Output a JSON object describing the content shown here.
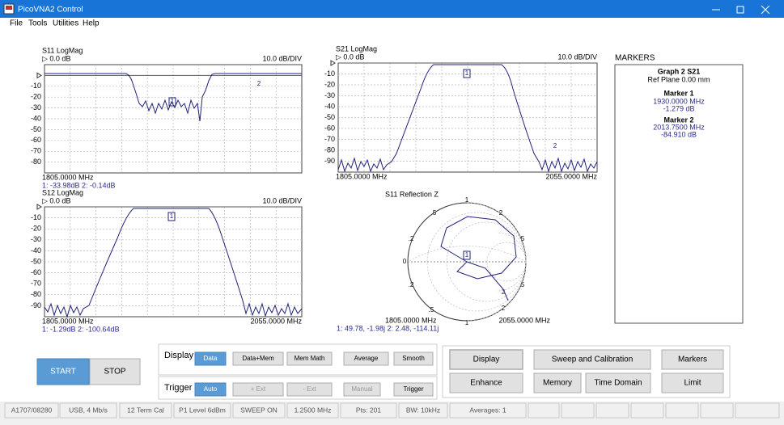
{
  "window": {
    "title": "PicoVNA2 Control"
  },
  "menu": [
    "File",
    "Tools",
    "Utilities",
    "Help"
  ],
  "plots": [
    {
      "title": "S11 LogMag",
      "ref": "▷ 0.0 dB",
      "scale": "10.0 dB/DIV",
      "yticks": [
        "-10",
        "-20",
        "-30",
        "-40",
        "-50",
        "-60",
        "-70",
        "-80"
      ],
      "start": "1805.0000 MHz",
      "readout": "1: -33.98dB   2: -0.14dB",
      "markers": [
        "1",
        "2"
      ]
    },
    {
      "title": "S21 LogMag",
      "ref": "▷ 0.0 dB",
      "scale": "10.0 dB/DIV",
      "yticks": [
        "-10",
        "-20",
        "-30",
        "-40",
        "-50",
        "-60",
        "-70",
        "-80",
        "-90"
      ],
      "start": "1805.0000 MHz",
      "stop": "2055.0000 MHz",
      "markers": [
        "1",
        "2"
      ]
    },
    {
      "title": "S12 LogMag",
      "ref": "▷ 0.0 dB",
      "scale": "10.0 dB/DIV",
      "yticks": [
        "-10",
        "-20",
        "-30",
        "-40",
        "-50",
        "-60",
        "-70",
        "-80",
        "-90"
      ],
      "start": "1805.0000 MHz",
      "stop": "2055.0000 MHz",
      "readout": "1: -1.29dB   2: -100.64dB",
      "markers": [
        "1"
      ]
    }
  ],
  "smith": {
    "title": "S11 Reflection Z",
    "labels": [
      "1",
      ".5",
      "2",
      ".2",
      "5",
      "0",
      ".2",
      "5",
      ".5",
      "2",
      "1"
    ],
    "start": "1805.0000 MHz",
    "stop": "2055.0000 MHz",
    "readout": "1: 49.78, -1.98j      2: 2.48, -114.11j",
    "markers": [
      "1",
      "2"
    ]
  },
  "markers_panel": {
    "heading": "MARKERS",
    "graph": "Graph 2 S21",
    "ref_plane": "Ref Plane 0.00 mm",
    "entries": [
      {
        "name": "Marker  1",
        "freq": "1930.0000 MHz",
        "value": "-1.279 dB"
      },
      {
        "name": "Marker  2",
        "freq": "2013.7500 MHz",
        "value": "-84.910 dB"
      }
    ]
  },
  "run": {
    "start": "START",
    "stop": "STOP"
  },
  "display": {
    "label": "Display",
    "buttons": [
      "Data",
      "Data+Mem",
      "Mem Math",
      "Average",
      "Smooth"
    ]
  },
  "trigger": {
    "label": "Trigger",
    "buttons": [
      "Auto",
      "+ Ext",
      "- Ext",
      "Manual",
      "Trigger"
    ]
  },
  "panel": {
    "buttons": [
      "Display",
      "Sweep and Calibration",
      "Markers",
      "Enhance",
      "Memory",
      "Time Domain",
      "Limit"
    ]
  },
  "status": [
    "A1707/08280",
    "USB, 4 Mb/s",
    "12 Term Cal",
    "P1 Level 6dBm",
    "SWEEP ON",
    "1.2500 MHz",
    "Pts: 201",
    "BW: 10kHz",
    "Averages: 1"
  ]
}
